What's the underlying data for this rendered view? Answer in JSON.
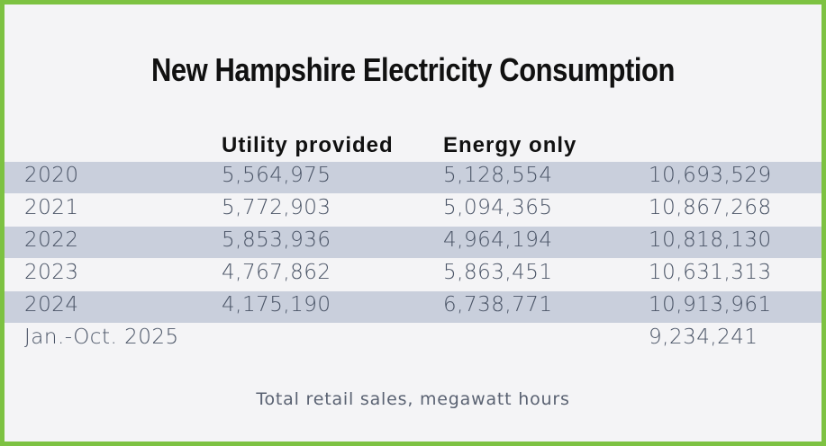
{
  "chart_data": {
    "type": "table",
    "title": "New Hampshire Electricity Consumption",
    "columns": [
      "",
      "Utility provided",
      "Energy only",
      ""
    ],
    "rows": [
      {
        "year": "2020",
        "utility_provided": "5,564,975",
        "energy_only": "5,128,554",
        "total": "10,693,529",
        "shaded": true
      },
      {
        "year": "2021",
        "utility_provided": "5,772,903",
        "energy_only": "5,094,365",
        "total": "10,867,268",
        "shaded": false
      },
      {
        "year": "2022",
        "utility_provided": "5,853,936",
        "energy_only": "4,964,194",
        "total": "10,818,130",
        "shaded": true
      },
      {
        "year": "2023",
        "utility_provided": "4,767,862",
        "energy_only": "5,863,451",
        "total": "10,631,313",
        "shaded": false
      },
      {
        "year": "2024",
        "utility_provided": "4,175,190",
        "energy_only": "6,738,771",
        "total": "10,913,961",
        "shaded": true
      },
      {
        "year": "Jan.-Oct. 2025",
        "utility_provided": "",
        "energy_only": "",
        "total": "9,234,241",
        "shaded": false
      }
    ],
    "caption": "Total retail sales, megawatt hours"
  },
  "colors": {
    "border": "#7dc242",
    "background": "#f4f4f6",
    "row_shade": "#c9cfdc",
    "title_text": "#111111",
    "cell_text": "#4a5466"
  }
}
